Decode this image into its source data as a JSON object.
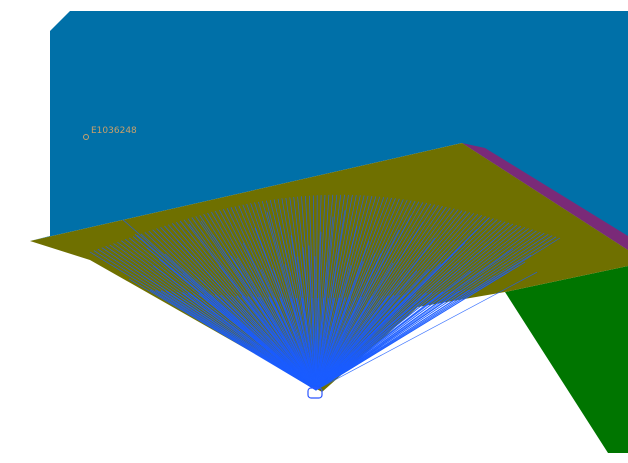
{
  "viewport": {
    "background": "#ffffff"
  },
  "scene": {
    "node_label": "E1036248",
    "colors": {
      "back_panel": "#0070a8",
      "ground_plane": "#6f7000",
      "edge_strip": "#7a2a78",
      "side_block": "#007500",
      "mesh_lines": "#1a5cff",
      "marker": "#2a55ff",
      "node_label": "#c8a06a"
    }
  }
}
